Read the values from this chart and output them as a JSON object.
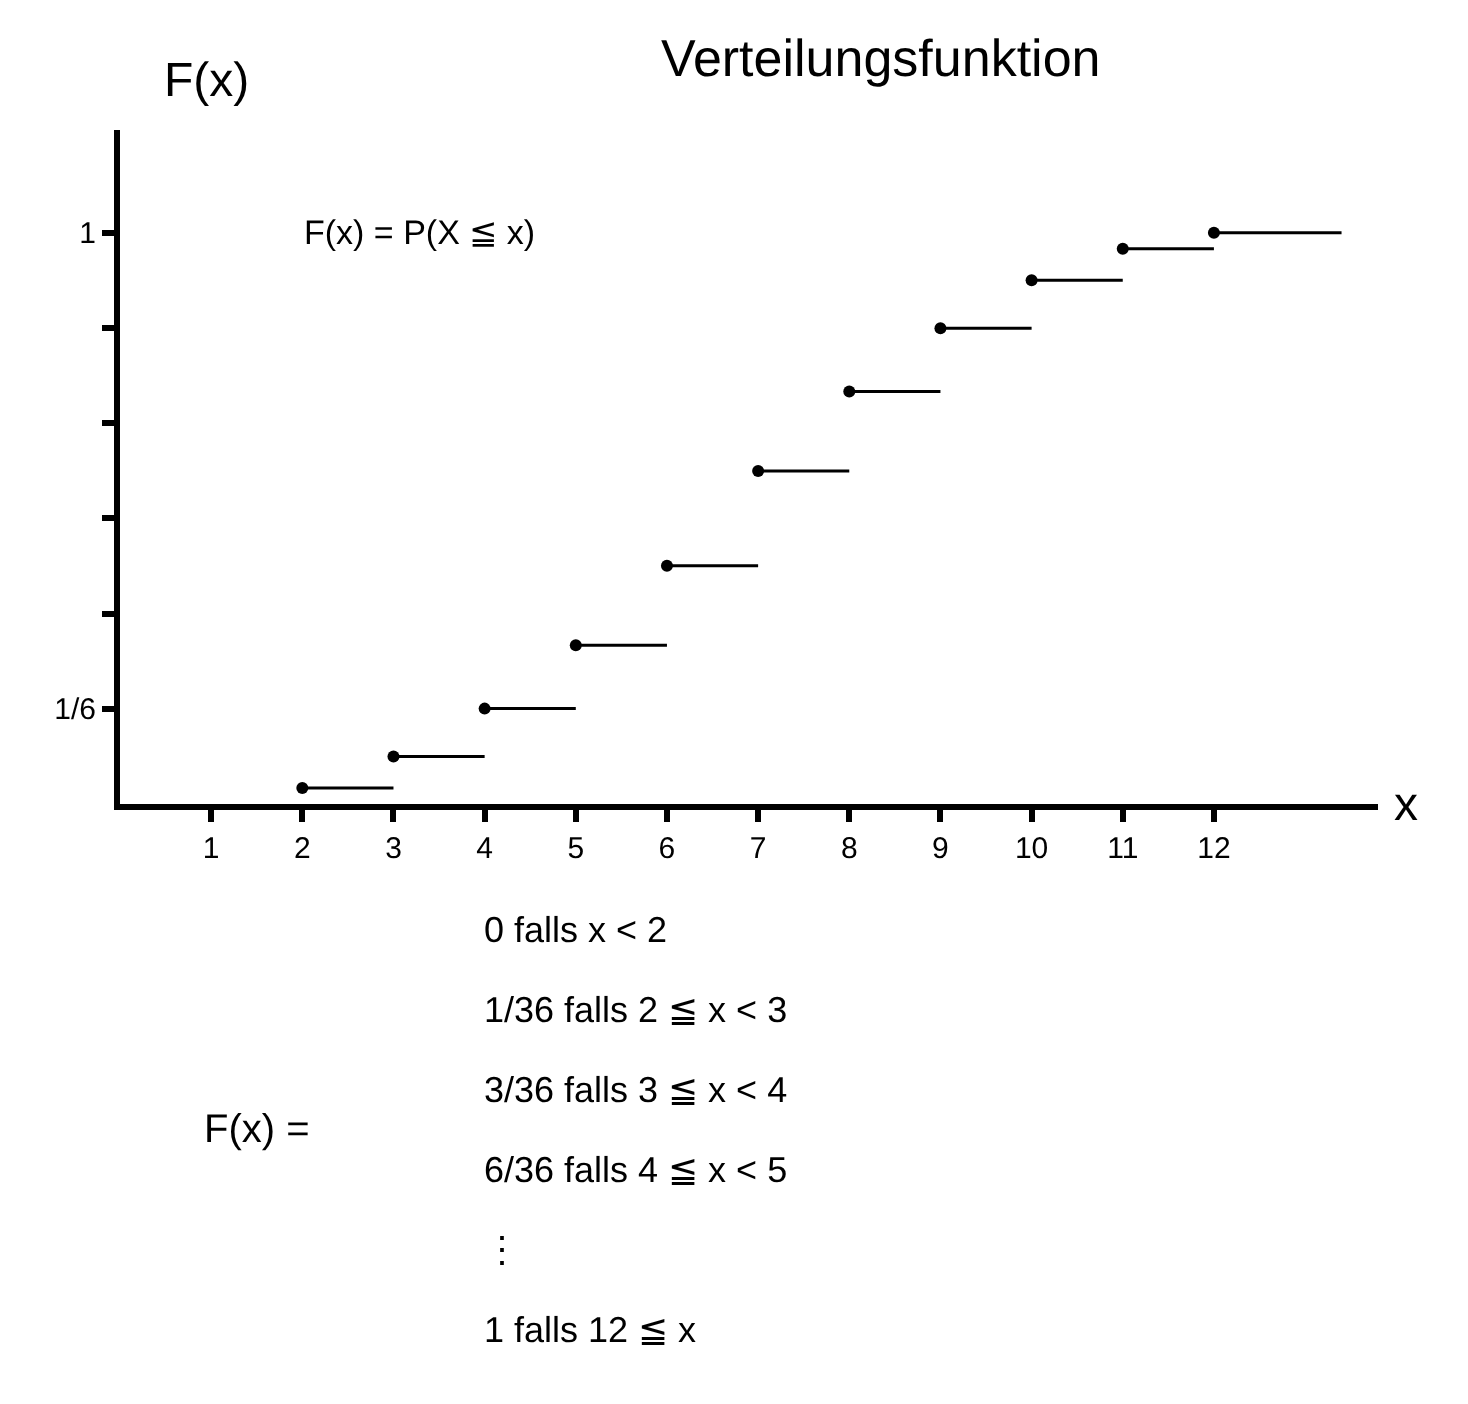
{
  "chart_data": {
    "type": "step",
    "title": "Verteilungsfunktion",
    "ylabel": "F(x)",
    "xlabel": "x",
    "x": [
      2,
      3,
      4,
      5,
      6,
      7,
      8,
      9,
      10,
      11,
      12,
      13.4
    ],
    "series": [
      {
        "color": "#000000",
        "values": [
          0.028,
          0.083,
          0.167,
          0.278,
          0.417,
          0.583,
          0.722,
          0.833,
          0.917,
          0.972,
          1,
          1
        ]
      }
    ],
    "xlim": [
      0,
      13.8
    ],
    "ylim": [
      0,
      1.18
    ],
    "xticks": [
      1,
      2,
      3,
      4,
      5,
      6,
      7,
      8,
      9,
      10,
      11,
      12
    ],
    "yticks": [
      {
        "value": 0.1667,
        "label": "1/6"
      },
      {
        "value": 0.3333,
        "label": null
      },
      {
        "value": 0.5,
        "label": null
      },
      {
        "value": 0.6667,
        "label": null
      },
      {
        "value": 0.8333,
        "label": null
      },
      1
    ],
    "marker": "circle",
    "annotations": [
      "F(x) = P(X ≦ x)",
      "F(x) =",
      "0 falls x < 2",
      "1/36 falls 2 ≦ x < 3",
      "3/36 falls 3 ≦ x < 4",
      "6/36 falls 4 ≦ x < 5",
      "⋮",
      "1 falls 12 ≦ x"
    ]
  }
}
